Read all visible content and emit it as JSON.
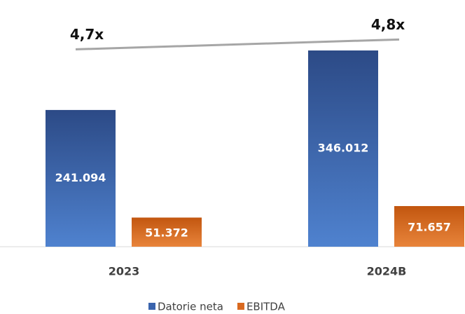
{
  "chart_data": {
    "type": "bar",
    "categories": [
      "2023",
      "2024B"
    ],
    "series": [
      {
        "name": "Datorie neta",
        "color": "#3a64ad",
        "values": [
          241094,
          346012
        ],
        "value_labels": [
          "241.094",
          "346.012"
        ]
      },
      {
        "name": "EBITDA",
        "color": "#d9691f",
        "values": [
          51372,
          71657
        ],
        "value_labels": [
          "51.372",
          "71.657"
        ]
      },
      {
        "type": "line",
        "axis": "y2",
        "color": "#a6a6a6",
        "values": [
          4.7,
          4.8
        ],
        "value_labels": [
          "4,7x",
          "4,8x"
        ]
      }
    ],
    "ylim": [
      0,
      435000
    ],
    "y2lim": [
      2.7,
      5.2
    ],
    "legend": "bottom"
  }
}
